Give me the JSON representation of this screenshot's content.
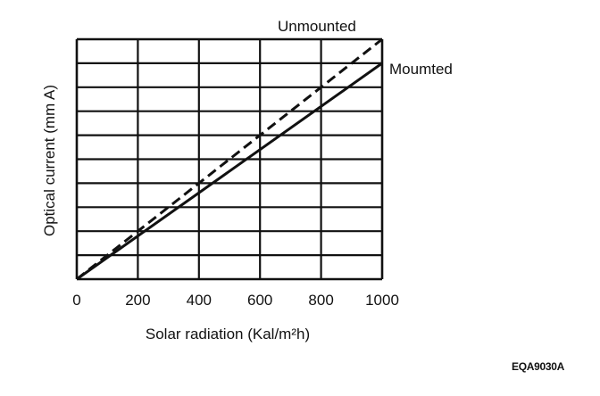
{
  "chart_data": {
    "type": "line",
    "xlabel": "Solar radiation (Kal/m²h)",
    "ylabel": "Optical current (mm A)",
    "xlim": [
      0,
      1000
    ],
    "ylim": [
      0,
      10
    ],
    "x_ticks": [
      0,
      200,
      400,
      600,
      800,
      1000
    ],
    "x_tick_labels": [
      "0",
      "200",
      "400",
      "600",
      "800",
      "1000"
    ],
    "y_tick_labels": [],
    "grid": true,
    "series": [
      {
        "name": "Unmounted",
        "style": "dashed",
        "x": [
          0,
          1000
        ],
        "y": [
          0,
          10
        ]
      },
      {
        "name": "Moumted",
        "style": "solid",
        "x": [
          0,
          1000
        ],
        "y": [
          0,
          9
        ]
      }
    ]
  },
  "figure_code": "EQA9030A"
}
